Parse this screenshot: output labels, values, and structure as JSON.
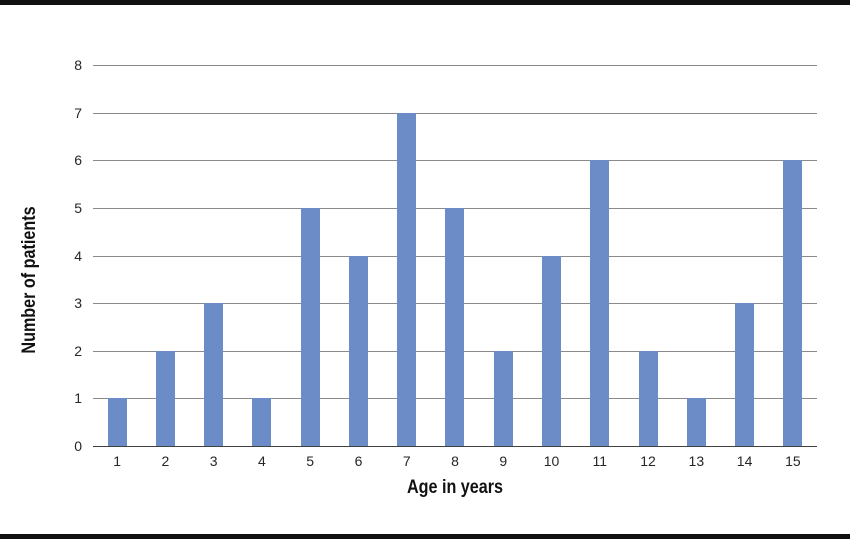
{
  "figure": {
    "rule_color": "#111111",
    "background": "#ffffff"
  },
  "chart_data": {
    "type": "bar",
    "title": "",
    "categories": [
      "1",
      "2",
      "3",
      "4",
      "5",
      "6",
      "7",
      "8",
      "9",
      "10",
      "11",
      "12",
      "13",
      "14",
      "15"
    ],
    "values": [
      1,
      2,
      3,
      1,
      5,
      4,
      7,
      5,
      2,
      4,
      6,
      2,
      1,
      3,
      6
    ],
    "xlabel": "Age in years",
    "ylabel": "Number of patients",
    "ylim": [
      0,
      8
    ],
    "ytick_step": 1,
    "yticks": [
      0,
      1,
      2,
      3,
      4,
      5,
      6,
      7,
      8
    ],
    "grid": true,
    "legend": false,
    "bar_color": "#6b8cc7",
    "gridline_color": "#8a8a8a",
    "axis_line_color": "#404040",
    "tick_label_color": "#262626",
    "axis_title_color": "#111111"
  }
}
